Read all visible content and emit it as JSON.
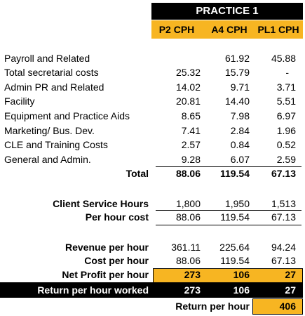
{
  "header": {
    "group_title": "PRACTICE 1",
    "columns": [
      "P2 CPH",
      "A4 CPH",
      "PL1 CPH"
    ]
  },
  "expenses": [
    {
      "label": "Payroll and Related",
      "values": [
        "",
        "61.92",
        "45.88"
      ]
    },
    {
      "label": "Total secretarial costs",
      "values": [
        "25.32",
        "15.79",
        "-"
      ]
    },
    {
      "label": "Admin PR and Related",
      "values": [
        "14.02",
        "9.71",
        "3.71"
      ]
    },
    {
      "label": "Facility",
      "values": [
        "20.81",
        "14.40",
        "5.51"
      ]
    },
    {
      "label": "Equipment and Practice Aids",
      "values": [
        "8.65",
        "7.98",
        "6.97"
      ]
    },
    {
      "label": "Marketing/ Bus. Dev.",
      "values": [
        "7.41",
        "2.84",
        "1.96"
      ]
    },
    {
      "label": "CLE and Training Costs",
      "values": [
        "2.57",
        "0.84",
        "0.52"
      ]
    },
    {
      "label": "General and Admin.",
      "values": [
        "9.28",
        "6.07",
        "2.59"
      ]
    }
  ],
  "total": {
    "label": "Total",
    "values": [
      "88.06",
      "119.54",
      "67.13"
    ]
  },
  "service": [
    {
      "label": "Client Service Hours",
      "values": [
        "1,800",
        "1,950",
        "1,513"
      ]
    },
    {
      "label": "Per hour cost",
      "values": [
        "88.06",
        "119.54",
        "67.13"
      ]
    }
  ],
  "revenue": [
    {
      "label": "Revenue per hour",
      "values": [
        "361.11",
        "225.64",
        "94.24"
      ]
    },
    {
      "label": "Cost per hour",
      "values": [
        "88.06",
        "119.54",
        "67.13"
      ]
    }
  ],
  "net_profit": {
    "label": "Net Profit per hour",
    "values": [
      "273",
      "106",
      "27"
    ]
  },
  "return_worked": {
    "label": "Return per hour worked",
    "values": [
      "273",
      "106",
      "27"
    ]
  },
  "return_per_hour": {
    "label": "Return per hour",
    "value": "406"
  },
  "colors": {
    "gold": "#f7b522",
    "black": "#000000"
  }
}
